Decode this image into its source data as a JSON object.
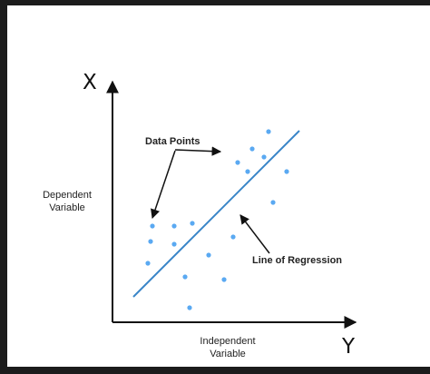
{
  "diagram": {
    "y_axis_letter": "X",
    "x_axis_letter": "Y",
    "y_axis_label_line1": "Dependent",
    "y_axis_label_line2": "Variable",
    "x_axis_label_line1": "Independent",
    "x_axis_label_line2": "Variable",
    "data_points_label": "Data Points",
    "regression_label": "Line of Regression"
  },
  "colors": {
    "background": "#ffffff",
    "frame": "#1c1c1c",
    "axis": "#111111",
    "point": "#5aa9f2",
    "regression_line": "#3a86c8",
    "text": "#222222"
  }
}
